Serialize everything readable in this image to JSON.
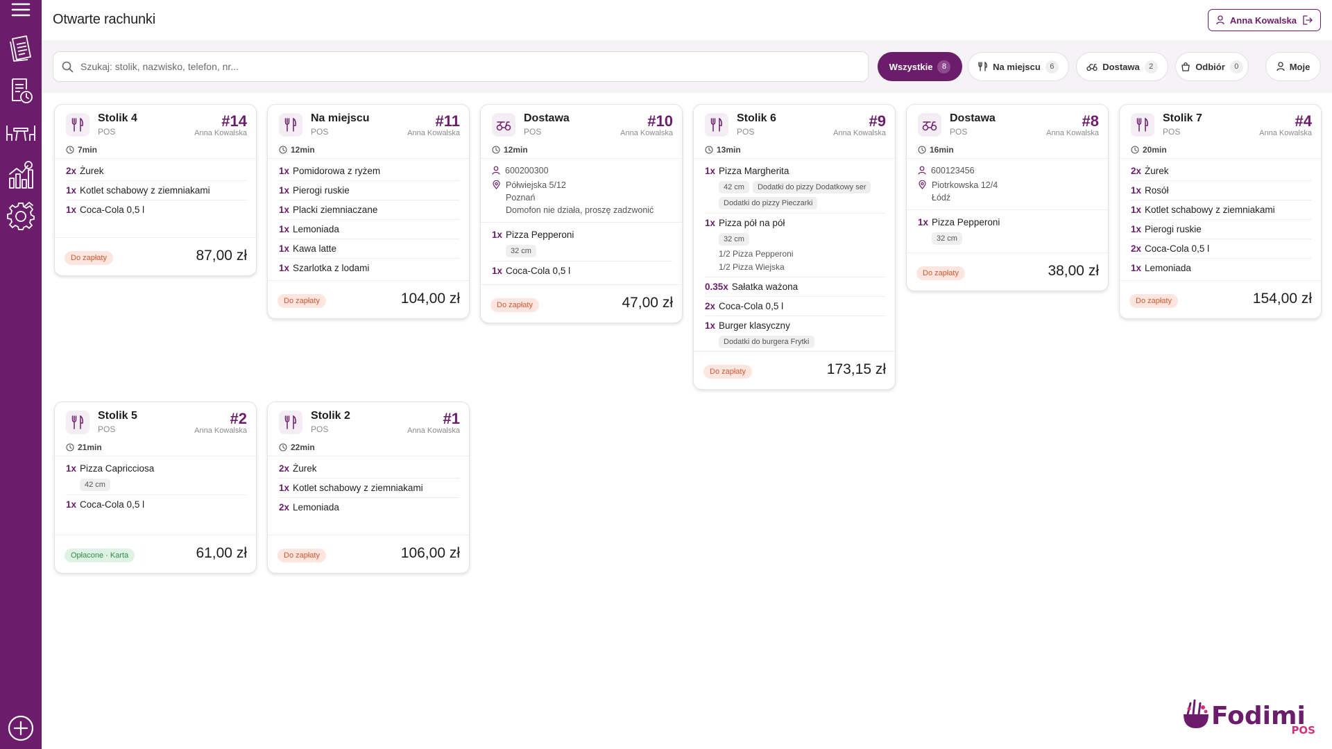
{
  "header": {
    "title": "Otwarte rachunki",
    "user_name": "Anna Kowalska"
  },
  "sidebar": {
    "items": [
      {
        "icon": "menu-icon"
      },
      {
        "icon": "bills-icon"
      },
      {
        "icon": "orders-history-icon"
      },
      {
        "icon": "tables-icon"
      },
      {
        "icon": "reports-icon"
      },
      {
        "icon": "settings-icon"
      }
    ],
    "add_icon": "plus-circle-icon"
  },
  "search": {
    "placeholder": "Szukaj: stolik, nazwisko, telefon, nr..."
  },
  "filters": [
    {
      "label": "Wszystkie",
      "count": "8",
      "icon": "",
      "active": true
    },
    {
      "label": "Na miejscu",
      "count": "6",
      "icon": "cutlery-icon",
      "active": false
    },
    {
      "label": "Dostawa",
      "count": "2",
      "icon": "scooter-icon",
      "active": false
    },
    {
      "label": "Odbiór",
      "count": "0",
      "icon": "bag-icon",
      "active": false
    },
    {
      "label": "Moje",
      "count": "",
      "icon": "user-icon",
      "active": false
    }
  ],
  "cards": [
    {
      "title": "Stolik 4",
      "source": "POS",
      "number": "#14",
      "owner": "Anna Kowalska",
      "time": "7min",
      "type": "dine-in",
      "items": [
        {
          "qty": "2x",
          "name": "Żurek"
        },
        {
          "qty": "1x",
          "name": "Kotlet schabowy z ziemniakami"
        },
        {
          "qty": "1x",
          "name": "Coca-Cola 0,5 l"
        }
      ],
      "status": "Do zapłaty",
      "status_type": "due",
      "total": "87,00 zł"
    },
    {
      "title": "Na miejscu",
      "source": "POS",
      "number": "#11",
      "owner": "Anna Kowalska",
      "time": "12min",
      "type": "dine-in",
      "items": [
        {
          "qty": "1x",
          "name": "Pomidorowa z ryżem"
        },
        {
          "qty": "1x",
          "name": "Pierogi ruskie"
        },
        {
          "qty": "1x",
          "name": "Placki ziemniaczane"
        },
        {
          "qty": "1x",
          "name": "Lemoniada"
        },
        {
          "qty": "1x",
          "name": "Kawa latte"
        },
        {
          "qty": "1x",
          "name": "Szarlotka z lodami"
        }
      ],
      "status": "Do zapłaty",
      "status_type": "due",
      "total": "104,00 zł"
    },
    {
      "title": "Dostawa",
      "source": "POS",
      "number": "#10",
      "owner": "Anna Kowalska",
      "time": "12min",
      "type": "delivery",
      "phone": "600200300",
      "address": [
        "Półwiejska 5/12",
        "Poznań",
        "Domofon nie działa, proszę zadzwonić"
      ],
      "items": [
        {
          "qty": "1x",
          "name": "Pizza Pepperoni",
          "mods": [
            "32 cm"
          ]
        },
        {
          "qty": "1x",
          "name": "Coca-Cola 0,5 l"
        }
      ],
      "status": "Do zapłaty",
      "status_type": "due",
      "total": "47,00 zł"
    },
    {
      "title": "Stolik 6",
      "source": "POS",
      "number": "#9",
      "owner": "Anna Kowalska",
      "time": "13min",
      "type": "dine-in",
      "items": [
        {
          "qty": "1x",
          "name": "Pizza Margherita",
          "mods": [
            "42 cm",
            "Dodatki do pizzy Dodatkowy ser",
            "Dodatki do pizzy Pieczarki"
          ]
        },
        {
          "qty": "1x",
          "name": "Pizza pół na pół",
          "mods": [
            "32 cm"
          ],
          "subs": [
            "1/2 Pizza Pepperoni",
            "1/2 Pizza Wiejska"
          ]
        },
        {
          "qty": "0.35x",
          "name": "Sałatka ważona"
        },
        {
          "qty": "2x",
          "name": "Coca-Cola 0,5 l"
        },
        {
          "qty": "1x",
          "name": "Burger klasyczny",
          "mods": [
            "Dodatki do burgera Frytki"
          ]
        }
      ],
      "status": "Do zapłaty",
      "status_type": "due",
      "total": "173,15 zł"
    },
    {
      "title": "Dostawa",
      "source": "POS",
      "number": "#8",
      "owner": "Anna Kowalska",
      "time": "16min",
      "type": "delivery",
      "phone": "600123456",
      "address": [
        "Piotrkowska 12/4",
        "Łódź"
      ],
      "items": [
        {
          "qty": "1x",
          "name": "Pizza Pepperoni",
          "mods": [
            "32 cm"
          ]
        }
      ],
      "status": "Do zapłaty",
      "status_type": "due",
      "total": "38,00 zł"
    },
    {
      "title": "Stolik 7",
      "source": "POS",
      "number": "#4",
      "owner": "Anna Kowalska",
      "time": "20min",
      "type": "dine-in",
      "items": [
        {
          "qty": "2x",
          "name": "Żurek"
        },
        {
          "qty": "1x",
          "name": "Rosół"
        },
        {
          "qty": "1x",
          "name": "Kotlet schabowy z ziemniakami"
        },
        {
          "qty": "1x",
          "name": "Pierogi ruskie"
        },
        {
          "qty": "2x",
          "name": "Coca-Cola 0,5 l"
        },
        {
          "qty": "1x",
          "name": "Lemoniada"
        }
      ],
      "status": "Do zapłaty",
      "status_type": "due",
      "total": "154,00 zł"
    },
    {
      "title": "Stolik 5",
      "source": "POS",
      "number": "#2",
      "owner": "Anna Kowalska",
      "time": "21min",
      "type": "dine-in",
      "items": [
        {
          "qty": "1x",
          "name": "Pizza Capricciosa",
          "mods": [
            "42 cm"
          ]
        },
        {
          "qty": "1x",
          "name": "Coca-Cola 0,5 l"
        }
      ],
      "status": "Opłacone · Karta",
      "status_type": "paid",
      "total": "61,00 zł"
    },
    {
      "title": "Stolik 2",
      "source": "POS",
      "number": "#1",
      "owner": "Anna Kowalska",
      "time": "22min",
      "type": "dine-in",
      "items": [
        {
          "qty": "2x",
          "name": "Żurek"
        },
        {
          "qty": "1x",
          "name": "Kotlet schabowy z ziemniakami"
        },
        {
          "qty": "2x",
          "name": "Lemoniada"
        }
      ],
      "status": "Do zapłaty",
      "status_type": "due",
      "total": "106,00 zł"
    }
  ],
  "brand": {
    "name": "Fodimi",
    "suffix": "POS",
    "color": "#6b1d6b",
    "accent": "#d1327a"
  }
}
